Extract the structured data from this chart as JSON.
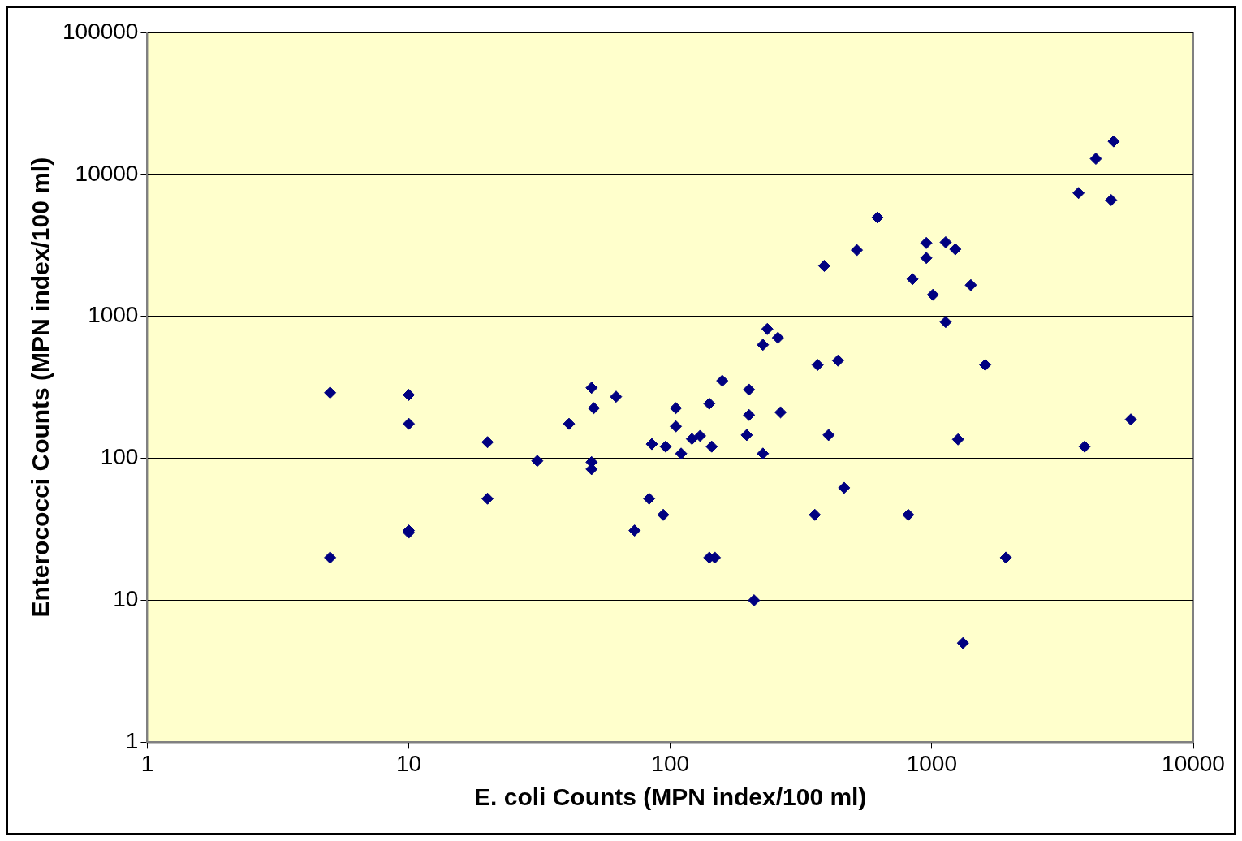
{
  "chart_data": {
    "type": "scatter",
    "xlabel": "E. coli Counts (MPN index/100 ml)",
    "ylabel": "Enterococci Counts (MPN index/100 ml)",
    "log": "xy",
    "grid": "y",
    "legend": false,
    "marker": "diamond",
    "xlim": [
      1,
      10000
    ],
    "xticks": [
      1,
      10,
      100,
      1000,
      10000
    ],
    "ylim": [
      1,
      100000
    ],
    "yticks": [
      1,
      10,
      100,
      1000,
      10000,
      100000
    ],
    "series": [
      {
        "color": "#000080",
        "x": [
          5,
          5,
          10,
          10,
          10,
          10,
          20,
          20,
          31,
          41,
          50,
          51,
          50,
          50,
          62,
          73,
          83,
          85,
          94,
          96,
          105,
          105,
          110,
          121,
          130,
          141,
          144,
          141,
          148,
          158,
          196,
          200,
          200,
          209,
          226,
          226,
          235,
          258,
          264,
          357,
          366,
          388,
          403,
          438,
          462,
          517,
          620,
          813,
          844,
          953,
          953,
          1010,
          1130,
          1130,
          1230,
          1260,
          1316,
          1410,
          1600,
          1920,
          3640,
          3840,
          4240,
          4850,
          4960,
          5770
        ],
        "values": [
          290,
          20,
          280,
          175,
          31,
          30,
          130,
          52,
          96,
          175,
          314,
          226,
          94,
          84,
          272,
          31,
          52,
          126,
          40,
          121,
          226,
          168,
          108,
          137,
          144,
          243,
          121,
          20,
          20,
          352,
          146,
          305,
          202,
          10,
          108,
          631,
          815,
          707,
          211,
          40,
          455,
          2270,
          146,
          488,
          62,
          2930,
          4970,
          40,
          1830,
          3290,
          2580,
          1420,
          913,
          3330,
          2970,
          136,
          5,
          1660,
          455,
          20,
          7400,
          121,
          12900,
          6600,
          17100,
          188
        ]
      }
    ]
  }
}
